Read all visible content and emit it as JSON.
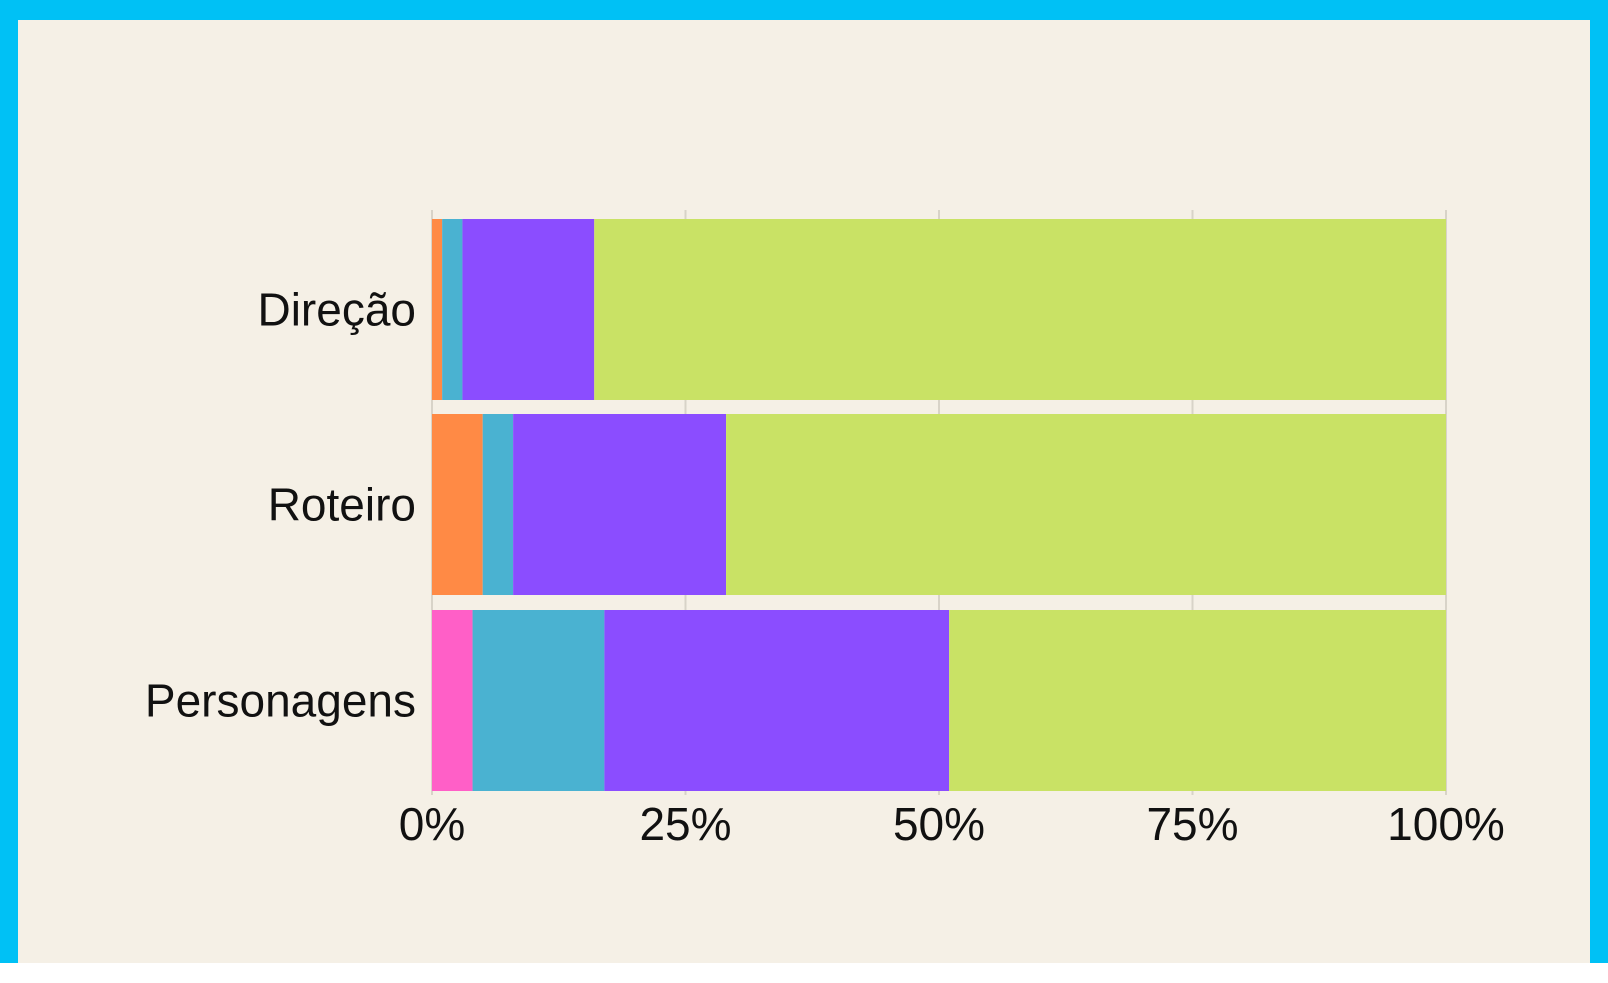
{
  "colors": {
    "frame": "#00c1f5",
    "background": "#f5f0e6",
    "gridline": "#d8d3c8"
  },
  "chart_data": {
    "type": "bar",
    "orientation": "horizontal",
    "stacked": true,
    "categories": [
      "Direção",
      "Roteiro",
      "Personagens"
    ],
    "series": [
      {
        "color": "#ff5fc7",
        "values": [
          0,
          0,
          4
        ]
      },
      {
        "color": "#ff8a45",
        "values": [
          1,
          5,
          0
        ]
      },
      {
        "color": "#4ab2d1",
        "values": [
          2,
          3,
          13
        ]
      },
      {
        "color": "#8b4dff",
        "values": [
          13,
          21,
          34
        ]
      },
      {
        "color": "#c9e265",
        "values": [
          84,
          71,
          49
        ]
      }
    ],
    "xlim": [
      0,
      100
    ],
    "x_ticks": [
      "0%",
      "25%",
      "50%",
      "75%",
      "100%"
    ],
    "x_tick_values": [
      0,
      25,
      50,
      75,
      100
    ],
    "grid": true,
    "legend": "none"
  }
}
